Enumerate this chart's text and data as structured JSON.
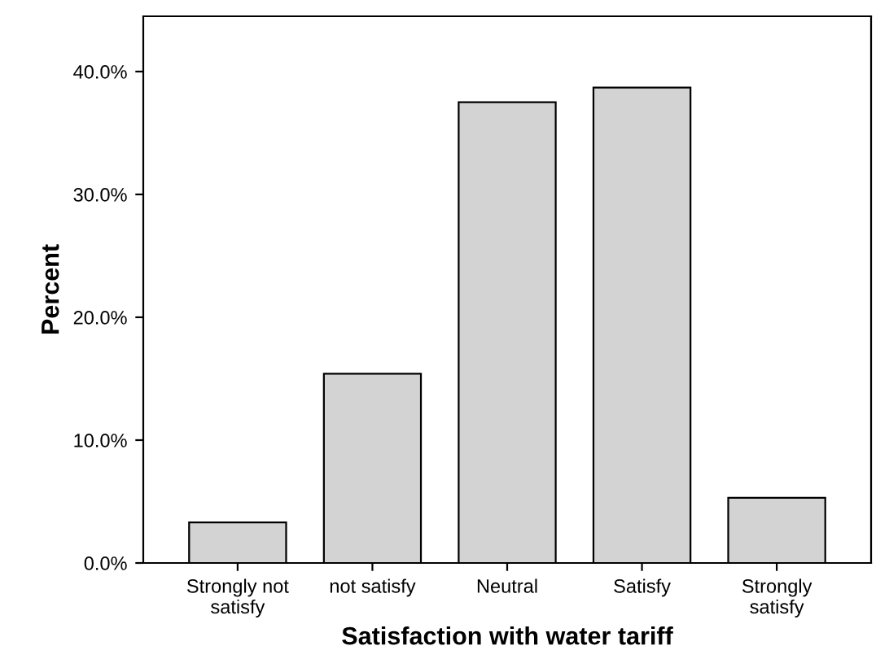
{
  "chart_data": {
    "type": "bar",
    "xlabel": "Satisfaction with water tariff",
    "ylabel": "Percent",
    "categories": [
      "Strongly not\nsatisfy",
      "not satisfy",
      "Neutral",
      "Satisfy",
      "Strongly\nsatisfy"
    ],
    "values": [
      3.3,
      15.4,
      37.5,
      38.7,
      5.3
    ],
    "color": "#d3d3d3",
    "ylim": [
      0,
      44.5
    ],
    "yticks": [
      {
        "value": 0,
        "label": "0.0%"
      },
      {
        "value": 10,
        "label": "10.0%"
      },
      {
        "value": 20,
        "label": "20.0%"
      },
      {
        "value": 30,
        "label": "30.0%"
      },
      {
        "value": 40,
        "label": "40.0%"
      }
    ],
    "grid": false
  }
}
